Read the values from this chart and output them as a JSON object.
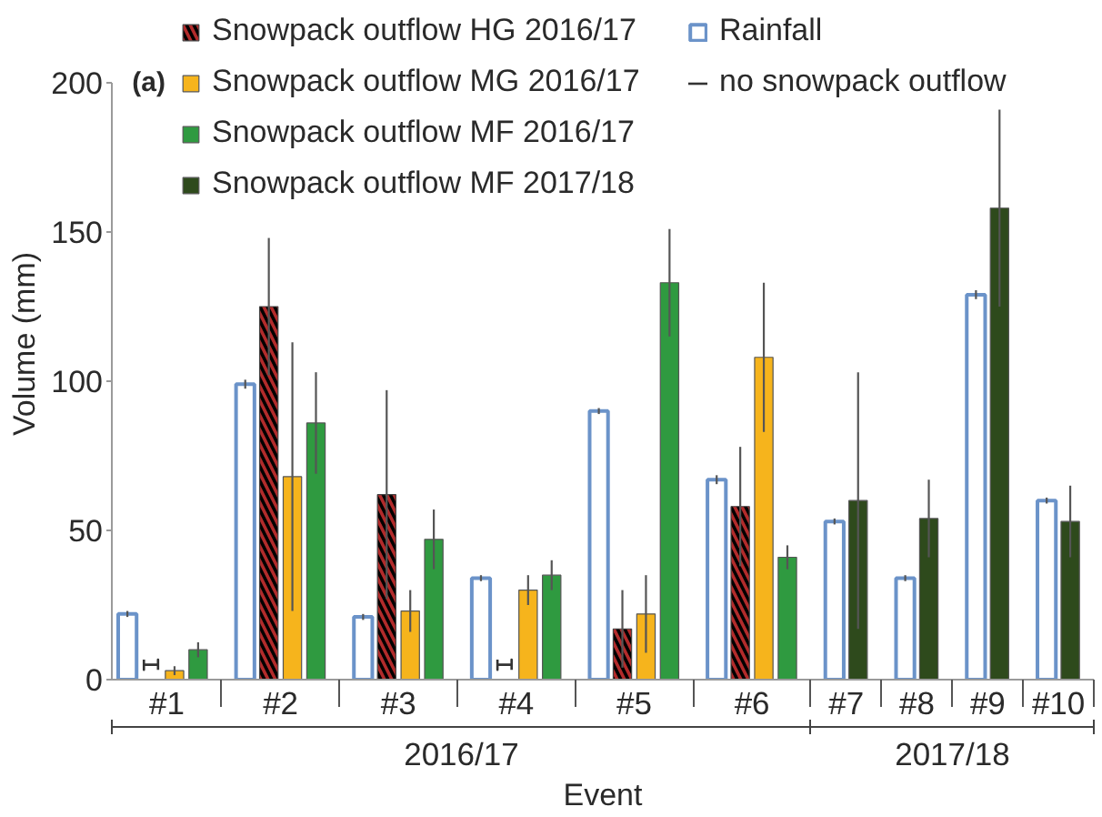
{
  "chart_data": {
    "type": "bar",
    "title": "(a)",
    "xlabel": "Event",
    "ylabel": "Volume (mm)",
    "categories": [
      "#1",
      "#2",
      "#3",
      "#4",
      "#5",
      "#6",
      "#7",
      "#8",
      "#9",
      "#10"
    ],
    "ylim": [
      0,
      200
    ],
    "yticks": [
      0,
      50,
      100,
      150,
      200
    ],
    "legend": "top",
    "annotations": [
      "2016/17",
      "2017/18"
    ],
    "series": [
      {
        "name": "Rainfall",
        "color": "#6b93c9",
        "values": [
          22,
          99,
          21,
          34,
          90,
          67,
          53,
          34,
          129,
          60
        ],
        "errors": [
          1,
          1.5,
          1,
          1,
          1,
          1.5,
          1,
          1,
          1.5,
          1
        ]
      },
      {
        "name": "no snowpack outflow",
        "type": "scatter",
        "color": "#333333",
        "x": [
          "#1",
          "#4"
        ],
        "values": [
          5,
          5
        ]
      },
      {
        "name": "Snowpack outflow HG 2016/17",
        "color": "#b22b2b",
        "values": [
          null,
          125,
          62,
          null,
          17,
          58,
          null,
          null,
          null,
          null
        ],
        "errors": [
          null,
          23,
          35,
          null,
          13,
          20,
          null,
          null,
          null,
          null
        ]
      },
      {
        "name": "Snowpack outflow MG 2016/17",
        "color": "#f6b41c",
        "values": [
          3,
          68,
          23,
          30,
          22,
          108,
          null,
          null,
          null,
          null
        ],
        "errors": [
          1.5,
          45,
          7,
          5,
          13,
          25,
          null,
          null,
          null,
          null
        ]
      },
      {
        "name": "Snowpack outflow MF 2016/17",
        "color": "#2f9a40",
        "values": [
          10,
          86,
          47,
          35,
          133,
          41,
          null,
          null,
          null,
          null
        ],
        "errors": [
          2.5,
          17,
          10,
          5,
          18,
          4,
          null,
          null,
          null,
          null
        ]
      },
      {
        "name": "Snowpack outflow MF 2017/18",
        "color": "#2e4a1c",
        "values": [
          null,
          null,
          null,
          null,
          null,
          null,
          60,
          54,
          158,
          53
        ],
        "errors": [
          null,
          null,
          null,
          null,
          null,
          null,
          43,
          13,
          33,
          12
        ]
      }
    ]
  }
}
